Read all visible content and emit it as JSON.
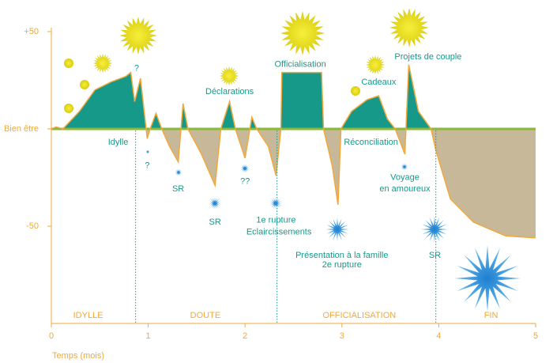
{
  "chart_data": {
    "type": "area",
    "xlabel": "Temps (mois)",
    "x": [
      0,
      0.05,
      0.12,
      0.29,
      0.45,
      0.61,
      0.77,
      0.82,
      0.86,
      0.92,
      0.99,
      1.02,
      1.08,
      1.14,
      1.22,
      1.31,
      1.36,
      1.41,
      1.55,
      1.69,
      1.75,
      1.84,
      1.9,
      2.0,
      2.07,
      2.12,
      2.24,
      2.32,
      2.37,
      2.38,
      2.79,
      2.81,
      2.9,
      2.96,
      2.99,
      3.1,
      3.26,
      3.38,
      3.47,
      3.55,
      3.65,
      3.69,
      3.79,
      3.92,
      3.97,
      4.12,
      4.36,
      4.69,
      5.0
    ],
    "values": [
      0,
      1,
      0,
      9,
      20,
      24,
      27,
      29,
      14,
      26,
      -5,
      0,
      8,
      0,
      -9,
      -17,
      13,
      0,
      -13,
      -29,
      0,
      14,
      0,
      -15,
      6,
      0,
      -9,
      -24,
      0,
      29,
      29,
      0,
      -19,
      -39,
      0,
      9,
      15,
      17,
      5,
      0,
      -13,
      33,
      9,
      0,
      -11,
      -36,
      -48,
      -55,
      -56
    ],
    "color": "#f2a93b",
    "fill_above": "#17998a",
    "fill_below": "#c8b89a",
    "zero_line_color": "#8ab83a",
    "xlim": [
      0,
      5
    ],
    "ylim": [
      -100,
      52
    ],
    "xticks": [
      0,
      1,
      2,
      3,
      4,
      5
    ],
    "yticks": [
      {
        "value": 50,
        "label": "+50"
      },
      {
        "value": 0,
        "label": "Bien être"
      },
      {
        "value": -50,
        "label": "-50"
      }
    ],
    "dividers": [
      0.87,
      2.33,
      3.97
    ],
    "phases": [
      {
        "label": "IDYLLE",
        "x": 0.38
      },
      {
        "label": "DOUTE",
        "x": 1.59
      },
      {
        "label": "OFFICIALISATION",
        "x": 3.18
      },
      {
        "label": "FIN",
        "x": 4.54
      }
    ],
    "phase_label_y": -96,
    "annotations": [
      {
        "text": "?",
        "x": 0.88,
        "y": 31
      },
      {
        "text": "Idylle",
        "x": 0.69,
        "y": -7
      },
      {
        "text": "?",
        "x": 0.99,
        "y": -19
      },
      {
        "text": "SR",
        "x": 1.31,
        "y": -31
      },
      {
        "text": "Déclarations",
        "x": 1.84,
        "y": 19
      },
      {
        "text": "SR",
        "x": 1.69,
        "y": -48
      },
      {
        "text": "??",
        "x": 2.0,
        "y": -27
      },
      {
        "text": "1e rupture",
        "x": 2.32,
        "y": -47
      },
      {
        "text": "Eclaircissements",
        "x": 2.35,
        "y": -53
      },
      {
        "text": "Officialisation",
        "x": 2.57,
        "y": 33
      },
      {
        "text": "Cadeaux",
        "x": 3.38,
        "y": 24
      },
      {
        "text": "Projets de couple",
        "x": 3.89,
        "y": 37
      },
      {
        "text": "Réconciliation",
        "x": 3.3,
        "y": -7
      },
      {
        "text": "Voyage",
        "x": 3.65,
        "y": -25
      },
      {
        "text": "en amoureux",
        "x": 3.65,
        "y": -31
      },
      {
        "text": "Présentation à la famille",
        "x": 3.0,
        "y": -65
      },
      {
        "text": "2e rupture",
        "x": 3.0,
        "y": -70
      },
      {
        "text": "SR",
        "x": 3.96,
        "y": -65
      }
    ]
  }
}
